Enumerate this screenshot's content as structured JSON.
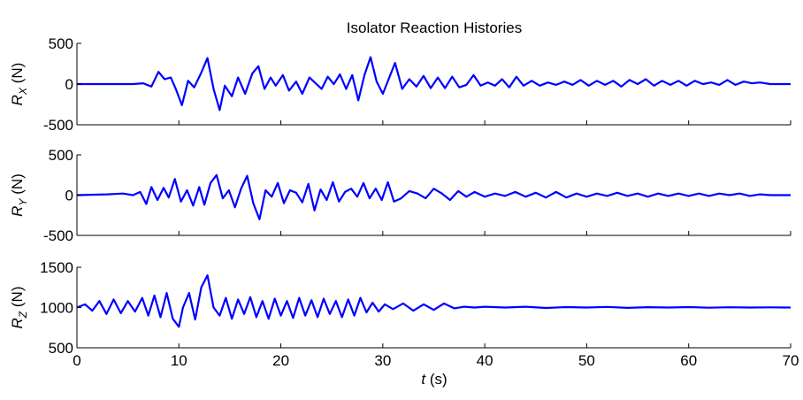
{
  "figure": {
    "title": "Isolator Reaction Histories",
    "xlabel_italic": "t",
    "xlabel_rest": " (s)"
  },
  "colors": {
    "line": "#0000ff",
    "axis": "#000000",
    "background": "#ffffff"
  },
  "chart_data": [
    {
      "type": "line",
      "ylabel_main": "R",
      "ylabel_sub": "X",
      "ylabel_unit": " (N)",
      "xlim": [
        0,
        70
      ],
      "ylim": [
        -500,
        500
      ],
      "yticks": [
        -500,
        0,
        500
      ],
      "ytick_labels": [
        "-500",
        "0",
        "500"
      ],
      "xticks": [
        0,
        10,
        20,
        30,
        40,
        50,
        60,
        70
      ],
      "x": [
        0,
        5.5,
        6.5,
        7.3,
        8.0,
        8.6,
        9.2,
        9.7,
        10.3,
        10.9,
        11.5,
        12.2,
        12.8,
        13.4,
        14.0,
        14.5,
        15.2,
        15.8,
        16.5,
        17.2,
        17.8,
        18.4,
        19.0,
        19.5,
        20.2,
        20.8,
        21.5,
        22.1,
        22.8,
        23.4,
        24.0,
        24.6,
        25.2,
        25.8,
        26.4,
        27.0,
        27.6,
        28.2,
        28.8,
        29.4,
        30.0,
        30.6,
        31.2,
        31.9,
        32.6,
        33.3,
        34.0,
        34.7,
        35.4,
        36.1,
        36.8,
        37.5,
        38.2,
        38.9,
        39.6,
        40.3,
        41.0,
        41.7,
        42.4,
        43.1,
        43.8,
        44.6,
        45.4,
        46.2,
        47.0,
        47.8,
        48.6,
        49.4,
        50.2,
        51.0,
        51.8,
        52.6,
        53.4,
        54.2,
        55.0,
        55.8,
        56.6,
        57.4,
        58.2,
        59.0,
        59.8,
        60.6,
        61.4,
        62.2,
        63.0,
        63.8,
        64.6,
        65.4,
        66.2,
        67.0,
        68.0,
        70.0
      ],
      "values": [
        0,
        0,
        10,
        -30,
        150,
        60,
        80,
        -60,
        -260,
        40,
        -40,
        140,
        320,
        -60,
        -320,
        -20,
        -150,
        80,
        -120,
        130,
        220,
        -60,
        80,
        -20,
        110,
        -80,
        30,
        -120,
        80,
        10,
        -60,
        90,
        0,
        120,
        -60,
        110,
        -200,
        110,
        330,
        30,
        -120,
        70,
        260,
        -60,
        60,
        -30,
        100,
        -50,
        80,
        -50,
        90,
        -40,
        -10,
        110,
        -20,
        20,
        -20,
        60,
        -40,
        90,
        -20,
        40,
        -20,
        20,
        -10,
        30,
        -10,
        50,
        -20,
        40,
        -10,
        40,
        -30,
        50,
        0,
        60,
        -20,
        40,
        -10,
        40,
        -20,
        40,
        0,
        20,
        -10,
        50,
        -10,
        30,
        10,
        20,
        0,
        0
      ]
    },
    {
      "type": "line",
      "ylabel_main": "R",
      "ylabel_sub": "Y",
      "ylabel_unit": " (N)",
      "xlim": [
        0,
        70
      ],
      "ylim": [
        -500,
        500
      ],
      "yticks": [
        -500,
        0,
        500
      ],
      "ytick_labels": [
        "-500",
        "0",
        "500"
      ],
      "xticks": [
        0,
        10,
        20,
        30,
        40,
        50,
        60,
        70
      ],
      "x": [
        0,
        3.0,
        4.5,
        5.5,
        6.2,
        6.8,
        7.3,
        7.9,
        8.5,
        9.0,
        9.6,
        10.2,
        10.8,
        11.4,
        12.0,
        12.5,
        13.1,
        13.7,
        14.3,
        14.9,
        15.5,
        16.1,
        16.7,
        17.3,
        17.9,
        18.5,
        19.1,
        19.7,
        20.3,
        20.9,
        21.5,
        22.1,
        22.7,
        23.3,
        23.9,
        24.5,
        25.1,
        25.7,
        26.3,
        26.9,
        27.5,
        28.1,
        28.7,
        29.3,
        29.9,
        30.5,
        31.1,
        31.8,
        32.6,
        33.4,
        34.2,
        35.0,
        35.8,
        36.6,
        37.4,
        38.2,
        39.0,
        40.0,
        41.0,
        42.0,
        43.0,
        44.0,
        45.0,
        46.0,
        47.0,
        48.0,
        49.0,
        50.0,
        51.0,
        52.0,
        53.0,
        54.0,
        55.0,
        56.0,
        57.0,
        58.0,
        59.0,
        60.0,
        61.0,
        62.0,
        63.0,
        64.0,
        65.0,
        66.0,
        67.0,
        68.0,
        70.0
      ],
      "values": [
        0,
        10,
        20,
        0,
        40,
        -110,
        100,
        -60,
        90,
        -30,
        200,
        -80,
        60,
        -130,
        100,
        -120,
        150,
        250,
        -40,
        60,
        -150,
        80,
        240,
        -100,
        -300,
        60,
        -20,
        150,
        -100,
        60,
        30,
        -90,
        140,
        -190,
        70,
        -60,
        160,
        -80,
        40,
        80,
        -20,
        150,
        -40,
        80,
        -60,
        160,
        -80,
        -40,
        50,
        20,
        -40,
        80,
        20,
        -60,
        50,
        -20,
        40,
        -20,
        20,
        -10,
        40,
        -20,
        30,
        -30,
        40,
        -30,
        20,
        -20,
        20,
        -10,
        30,
        -10,
        20,
        -20,
        20,
        -10,
        20,
        -10,
        20,
        -10,
        20,
        0,
        20,
        -10,
        10,
        0,
        0
      ]
    },
    {
      "type": "line",
      "ylabel_main": "R",
      "ylabel_sub": "Z",
      "ylabel_unit": " (N)",
      "xlim": [
        0,
        70
      ],
      "ylim": [
        500,
        1500
      ],
      "yticks": [
        500,
        1000,
        1500
      ],
      "ytick_labels": [
        "500",
        "1000",
        "1500"
      ],
      "xticks": [
        0,
        10,
        20,
        30,
        40,
        50,
        60,
        70
      ],
      "xtick_labels": [
        "0",
        "10",
        "20",
        "30",
        "40",
        "50",
        "60",
        "70"
      ],
      "x": [
        0,
        0.8,
        1.5,
        2.2,
        2.9,
        3.6,
        4.3,
        5.0,
        5.7,
        6.4,
        7.0,
        7.6,
        8.2,
        8.8,
        9.4,
        10.0,
        10.4,
        11.0,
        11.6,
        12.2,
        12.8,
        13.4,
        14.0,
        14.6,
        15.2,
        15.8,
        16.4,
        17.0,
        17.6,
        18.2,
        18.8,
        19.4,
        20.0,
        20.6,
        21.2,
        21.8,
        22.4,
        23.0,
        23.6,
        24.2,
        24.8,
        25.4,
        26.0,
        26.6,
        27.2,
        27.8,
        28.4,
        29.0,
        29.6,
        30.2,
        31.0,
        32.0,
        33.0,
        34.0,
        35.0,
        36.0,
        37.0,
        38.0,
        39.0,
        40.0,
        42.0,
        44.0,
        46.0,
        48.0,
        50.0,
        52.0,
        54.0,
        56.0,
        58.0,
        60.0,
        62.0,
        64.0,
        66.0,
        68.0,
        70.0
      ],
      "values": [
        1000,
        1040,
        960,
        1080,
        920,
        1100,
        930,
        1080,
        950,
        1120,
        900,
        1150,
        880,
        1180,
        860,
        760,
        1000,
        1180,
        850,
        1250,
        1400,
        1000,
        900,
        1120,
        860,
        1100,
        920,
        1130,
        880,
        1080,
        860,
        1110,
        900,
        1080,
        870,
        1120,
        900,
        1090,
        880,
        1110,
        920,
        1080,
        880,
        1100,
        900,
        1120,
        940,
        1060,
        950,
        1040,
        980,
        1050,
        960,
        1040,
        970,
        1050,
        990,
        1010,
        1000,
        1010,
        1000,
        1010,
        995,
        1005,
        1000,
        1008,
        996,
        1004,
        1000,
        1006,
        998,
        1003,
        1000,
        1002,
        1000
      ]
    }
  ]
}
